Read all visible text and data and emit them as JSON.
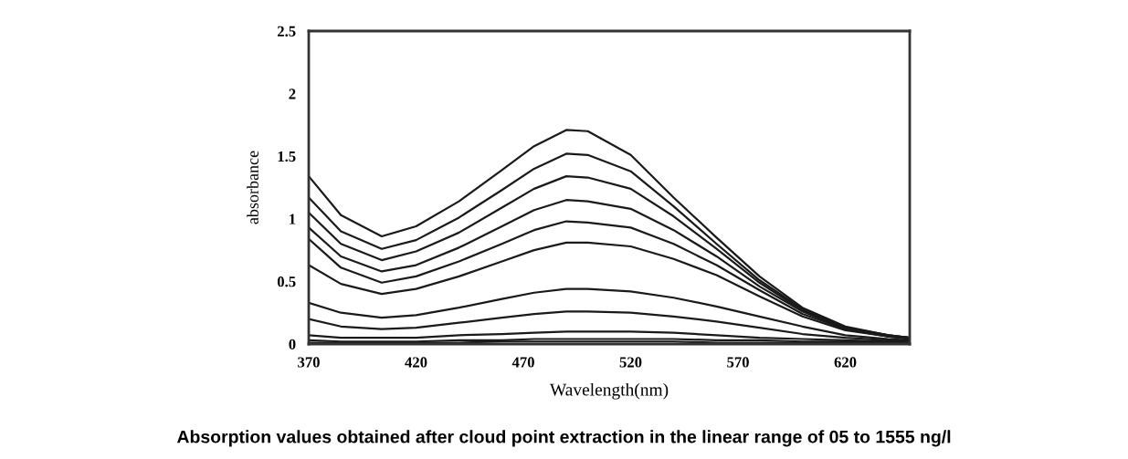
{
  "chart_data": {
    "type": "line",
    "xlabel": "Wavelength(nm)",
    "ylabel": "absorbance",
    "annotations": [
      "Absorption values obtained after cloud point extraction in the linear range of 05 to 1555 ng/l"
    ],
    "x": [
      370,
      385,
      404,
      420,
      440,
      460,
      475,
      490,
      500,
      520,
      540,
      560,
      580,
      600,
      620,
      640,
      650
    ],
    "series": [
      {
        "color": "#1a1a1a",
        "values": [
          1.34,
          1.03,
          0.86,
          0.94,
          1.14,
          1.39,
          1.58,
          1.71,
          1.7,
          1.51,
          1.17,
          0.85,
          0.54,
          0.29,
          0.14,
          0.07,
          0.05
        ]
      },
      {
        "color": "#1a1a1a",
        "values": [
          1.17,
          0.9,
          0.76,
          0.83,
          1.01,
          1.23,
          1.4,
          1.52,
          1.51,
          1.38,
          1.1,
          0.8,
          0.51,
          0.28,
          0.13,
          0.07,
          0.05
        ]
      },
      {
        "color": "#1a1a1a",
        "values": [
          1.05,
          0.8,
          0.67,
          0.74,
          0.89,
          1.09,
          1.24,
          1.34,
          1.33,
          1.24,
          1.02,
          0.76,
          0.49,
          0.27,
          0.13,
          0.07,
          0.05
        ]
      },
      {
        "color": "#1a1a1a",
        "values": [
          0.93,
          0.7,
          0.58,
          0.63,
          0.77,
          0.94,
          1.07,
          1.15,
          1.14,
          1.08,
          0.91,
          0.7,
          0.46,
          0.26,
          0.12,
          0.06,
          0.05
        ]
      },
      {
        "color": "#1a1a1a",
        "values": [
          0.84,
          0.61,
          0.49,
          0.54,
          0.66,
          0.8,
          0.91,
          0.98,
          0.97,
          0.93,
          0.8,
          0.63,
          0.43,
          0.24,
          0.12,
          0.06,
          0.05
        ]
      },
      {
        "color": "#1a1a1a",
        "values": [
          0.63,
          0.48,
          0.4,
          0.44,
          0.54,
          0.66,
          0.75,
          0.81,
          0.81,
          0.78,
          0.68,
          0.55,
          0.38,
          0.22,
          0.11,
          0.06,
          0.04
        ]
      },
      {
        "color": "#1a1a1a",
        "values": [
          0.33,
          0.25,
          0.21,
          0.23,
          0.29,
          0.36,
          0.41,
          0.44,
          0.44,
          0.42,
          0.37,
          0.3,
          0.22,
          0.14,
          0.07,
          0.04,
          0.03
        ]
      },
      {
        "color": "#1a1a1a",
        "values": [
          0.2,
          0.14,
          0.12,
          0.13,
          0.17,
          0.21,
          0.24,
          0.26,
          0.26,
          0.25,
          0.22,
          0.18,
          0.13,
          0.08,
          0.05,
          0.03,
          0.02
        ]
      },
      {
        "color": "#1a1a1a",
        "values": [
          0.07,
          0.05,
          0.05,
          0.05,
          0.07,
          0.08,
          0.09,
          0.1,
          0.1,
          0.1,
          0.09,
          0.07,
          0.05,
          0.04,
          0.03,
          0.02,
          0.02
        ]
      },
      {
        "color": "#1a1a1a",
        "values": [
          0.03,
          0.02,
          0.02,
          0.02,
          0.03,
          0.03,
          0.04,
          0.04,
          0.04,
          0.04,
          0.04,
          0.03,
          0.03,
          0.02,
          0.02,
          0.01,
          0.01
        ]
      },
      {
        "color": "#1a1a1a",
        "values": [
          0.01,
          0.01,
          0.01,
          0.01,
          0.01,
          0.02,
          0.02,
          0.02,
          0.02,
          0.02,
          0.02,
          0.01,
          0.01,
          0.01,
          0.01,
          0.01,
          0.01
        ]
      }
    ],
    "xlim": [
      370,
      650
    ],
    "xticks": [
      370,
      420,
      470,
      520,
      570,
      620
    ],
    "ylim": [
      0,
      2.5
    ],
    "yticks": [
      0,
      0.5,
      1,
      1.5,
      2,
      2.5
    ],
    "grid": false,
    "marker": "none",
    "line_style": "solid"
  }
}
